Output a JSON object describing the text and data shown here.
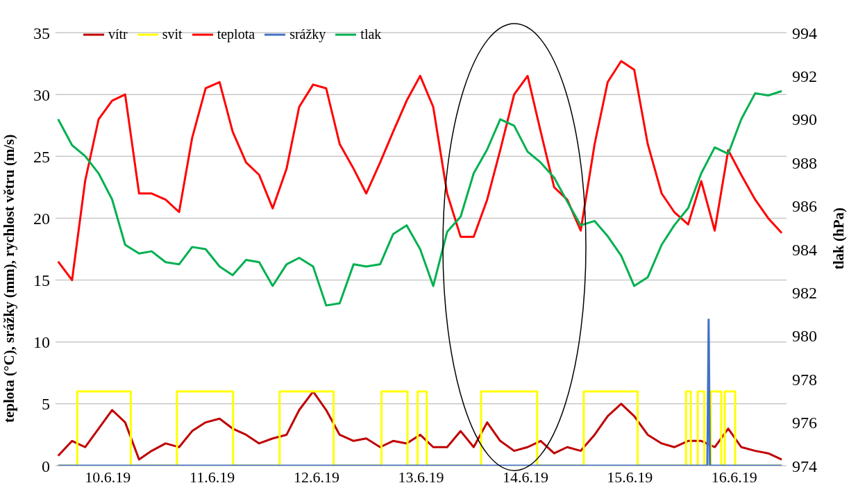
{
  "chart_data": {
    "type": "line",
    "ylabel": "teplota (°C), srážky (mm), rychlost větru (m/s)",
    "y2label": "tlak (hPa)",
    "x": [
      "--06-10T00:36",
      "--06-10T03:48",
      "--06-10T06:48",
      "--06-10T09:54",
      "--06-10T13:00",
      "--06-10T16:00",
      "--06-10T19:12",
      "--06-10T22:06",
      "--06-11T01:18",
      "--06-11T04:24",
      "--06-11T07:24",
      "--06-11T10:30",
      "--06-11T13:42",
      "--06-11T16:42",
      "--06-11T19:48",
      "--06-11T22:48",
      "--06-12T01:54",
      "--06-12T05:06",
      "--06-12T08:00",
      "--06-12T11:12",
      "--06-12T14:12",
      "--06-12T17:18",
      "--06-12T20:30",
      "--06-12T23:24",
      "--06-13T02:36",
      "--06-13T05:36",
      "--06-13T08:42",
      "--06-13T11:48",
      "--06-13T14:48",
      "--06-13T18:00",
      "--06-13T21:06",
      "--06-14T00:06",
      "--06-14T03:12",
      "--06-14T06:12",
      "--06-14T09:24",
      "--06-14T12:30",
      "--06-14T15:30",
      "--06-14T18:36",
      "--06-14T21:36",
      "--06-15T00:42",
      "--06-15T03:54",
      "--06-15T06:54",
      "--06-15T10:00",
      "--06-15T13:00",
      "--06-15T16:06",
      "--06-15T19:18",
      "--06-15T22:12",
      "--06-16T01:24",
      "--06-16T04:24",
      "--06-16T07:30",
      "--06-16T10:36",
      "--06-16T13:36",
      "--06-16T16:48",
      "--06-16T19:48",
      "--06-16T22:54"
    ],
    "xlim": [
      "--06-10T00:00",
      "--06-17T00:00"
    ],
    "xticks": [
      {
        "value": "--06-10T12:00",
        "label": "10.6.19"
      },
      {
        "value": "--06-11T12:00",
        "label": "11.6.19"
      },
      {
        "value": "--06-12T12:00",
        "label": "12.6.19"
      },
      {
        "value": "--06-13T12:00",
        "label": "13.6.19"
      },
      {
        "value": "--06-14T12:00",
        "label": "14.6.19"
      },
      {
        "value": "--06-15T12:00",
        "label": "15.6.19"
      },
      {
        "value": "--06-16T12:00",
        "label": "16.6.19"
      }
    ],
    "ylim": [
      0,
      35
    ],
    "yticks": [
      0,
      5,
      10,
      15,
      20,
      25,
      30,
      35
    ],
    "y2lim": [
      974,
      994
    ],
    "y2ticks": [
      974,
      976,
      978,
      980,
      982,
      984,
      986,
      988,
      990,
      992,
      994
    ],
    "grid": "y",
    "legend": "top left",
    "marker": "none",
    "line_style": "solid",
    "series": [
      {
        "name": "vítr",
        "color": "#c00000",
        "values": [
          0.8,
          2,
          1.5,
          3,
          4.5,
          3.5,
          0.5,
          1.2,
          1.8,
          1.5,
          2.8,
          3.5,
          3.8,
          3,
          2.5,
          1.8,
          2.2,
          2.5,
          4.5,
          6,
          4.5,
          2.5,
          2,
          2.2,
          1.5,
          2,
          1.8,
          2.5,
          1.5,
          1.5,
          2.8,
          1.5,
          3.5,
          2,
          1.2,
          1.5,
          2,
          1,
          1.5,
          1.2,
          2.5,
          4,
          5,
          4,
          2.5,
          1.8,
          1.5,
          2,
          2,
          1.5,
          3,
          1.5,
          1.2,
          1,
          0.5
        ]
      },
      {
        "name": "svit",
        "color": "#ffff00",
        "x": [
          "--06-10T00:36",
          "--06-10T05:00",
          "--06-10T05:00",
          "--06-10T17:18",
          "--06-10T17:18",
          "--06-11T03:54",
          "--06-11T03:54",
          "--06-11T16:48",
          "--06-11T16:48",
          "--06-12T03:30",
          "--06-12T03:30",
          "--06-12T15:54",
          "--06-12T15:54",
          "--06-13T02:54",
          "--06-13T02:54",
          "--06-13T08:54",
          "--06-13T08:54",
          "--06-13T11:12",
          "--06-13T11:12",
          "--06-13T13:18",
          "--06-13T13:18",
          "--06-14T01:48",
          "--06-14T01:48",
          "--06-14T14:42",
          "--06-14T14:42",
          "--06-15T01:24",
          "--06-15T01:24",
          "--06-15T13:48",
          "--06-15T13:48",
          "--06-16T00:54",
          "--06-16T00:54",
          "--06-16T02:00",
          "--06-16T02:00",
          "--06-16T03:36",
          "--06-16T03:36",
          "--06-16T05:06",
          "--06-16T05:06",
          "--06-16T06:36",
          "--06-16T06:36",
          "--06-16T09:00",
          "--06-16T09:00",
          "--06-16T09:48",
          "--06-16T09:48",
          "--06-16T12:12",
          "--06-16T12:12",
          "--06-16T22:54"
        ],
        "values": [
          0,
          0,
          6,
          6,
          0,
          0,
          6,
          6,
          0,
          0,
          6,
          6,
          0,
          0,
          6,
          6,
          0,
          0,
          6,
          6,
          0,
          0,
          6,
          6,
          0,
          0,
          6,
          6,
          0,
          0,
          6,
          6,
          0,
          0,
          6,
          6,
          0,
          0,
          6,
          6,
          0,
          0,
          6,
          6,
          0,
          0
        ]
      },
      {
        "name": "teplota",
        "color": "#ff0000",
        "values": [
          16.5,
          15,
          23,
          28,
          29.5,
          30,
          22,
          22,
          21.5,
          20.5,
          26.5,
          30.5,
          31,
          27,
          24.5,
          23.5,
          20.8,
          24,
          29,
          30.8,
          30.5,
          26,
          24,
          22,
          24.5,
          27,
          29.5,
          31.5,
          29,
          22,
          18.5,
          18.5,
          21.5,
          25.5,
          30,
          31.5,
          27,
          22.5,
          21.5,
          19,
          26,
          31,
          32.7,
          32,
          26,
          22,
          20.5,
          19.5,
          23,
          19,
          25.5,
          23.5,
          21.5,
          20,
          18.8
        ]
      },
      {
        "name": "srážky",
        "color": "#4472c4",
        "x": [
          "--06-10T00:36",
          "--06-16T05:48",
          "--06-16T06:06",
          "--06-16T06:24",
          "--06-16T22:54"
        ],
        "values": [
          0,
          0,
          11.8,
          0,
          0
        ]
      },
      {
        "name": "tlak",
        "color": "#00b050",
        "axis": "y2",
        "values": [
          990,
          988.8,
          988.3,
          987.5,
          986.3,
          984.2,
          983.8,
          983.9,
          983.4,
          983.3,
          984.1,
          984,
          983.2,
          982.8,
          983.5,
          983.4,
          982.3,
          983.3,
          983.6,
          983.2,
          981.4,
          981.5,
          983.3,
          983.2,
          983.3,
          984.7,
          985.1,
          984,
          982.3,
          984.8,
          985.5,
          987.5,
          988.6,
          990,
          989.7,
          988.5,
          988,
          987.3,
          986.2,
          985.1,
          985.3,
          984.6,
          983.7,
          982.3,
          982.7,
          984.2,
          985.1,
          985.9,
          987.5,
          988.7,
          988.4,
          990,
          991.2,
          991.1,
          991.3
        ]
      }
    ]
  }
}
